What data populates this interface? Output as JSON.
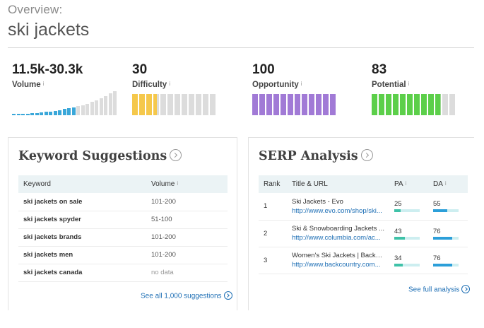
{
  "header": {
    "overview_label": "Overview:",
    "keyword": "ski jackets"
  },
  "metrics": [
    {
      "value": "11.5k-30.3k",
      "label": "Volume",
      "info": "i",
      "color": "#3aa7d9",
      "bars": [
        0.05,
        0.05,
        0.07,
        0.07,
        0.09,
        0.1,
        0.12,
        0.14,
        0.16,
        0.19,
        0.22,
        0.25,
        0.29,
        0.33,
        0.37,
        0.42,
        0.48,
        0.55,
        0.62,
        0.7,
        0.8,
        0.9,
        1.0
      ],
      "filled_count": 14
    },
    {
      "value": "30",
      "label": "Difficulty",
      "info": "i",
      "color": "#f5c84b",
      "level": 30
    },
    {
      "value": "100",
      "label": "Opportunity",
      "info": "i",
      "color": "#a17ad6",
      "level": 100
    },
    {
      "value": "83",
      "label": "Potential",
      "info": "i",
      "color": "#5ccf4a",
      "level": 83
    }
  ],
  "keyword_suggestions": {
    "title": "Keyword Suggestions",
    "col_keyword": "Keyword",
    "col_volume": "Volume",
    "col_volume_info": "i",
    "rows": [
      {
        "keyword": "ski jackets on sale",
        "volume": "101-200"
      },
      {
        "keyword": "ski jackets spyder",
        "volume": "51-100"
      },
      {
        "keyword": "ski jackets brands",
        "volume": "101-200"
      },
      {
        "keyword": "ski jackets men",
        "volume": "101-200"
      },
      {
        "keyword": "ski jackets canada",
        "volume": "no data"
      }
    ],
    "footer_link": "See all 1,000 suggestions"
  },
  "serp_analysis": {
    "title": "SERP Analysis",
    "col_rank": "Rank",
    "col_title": "Title & URL",
    "col_pa": "PA",
    "col_da": "DA",
    "info": "i",
    "rows": [
      {
        "rank": "1",
        "title": "Ski Jackets - Evo",
        "url": "http://www.evo.com/shop/ski...",
        "pa": "25",
        "da": "55",
        "pa_level": 25,
        "da_level": 55
      },
      {
        "rank": "2",
        "title": "Ski & Snowboarding Jackets ...",
        "url": "http://www.columbia.com/ac...",
        "pa": "43",
        "da": "76",
        "pa_level": 43,
        "da_level": 76
      },
      {
        "rank": "3",
        "title": "Women's Ski Jackets | Backco...",
        "url": "http://www.backcountry.com...",
        "pa": "34",
        "da": "76",
        "pa_level": 34,
        "da_level": 76
      }
    ],
    "footer_link": "See full analysis"
  }
}
